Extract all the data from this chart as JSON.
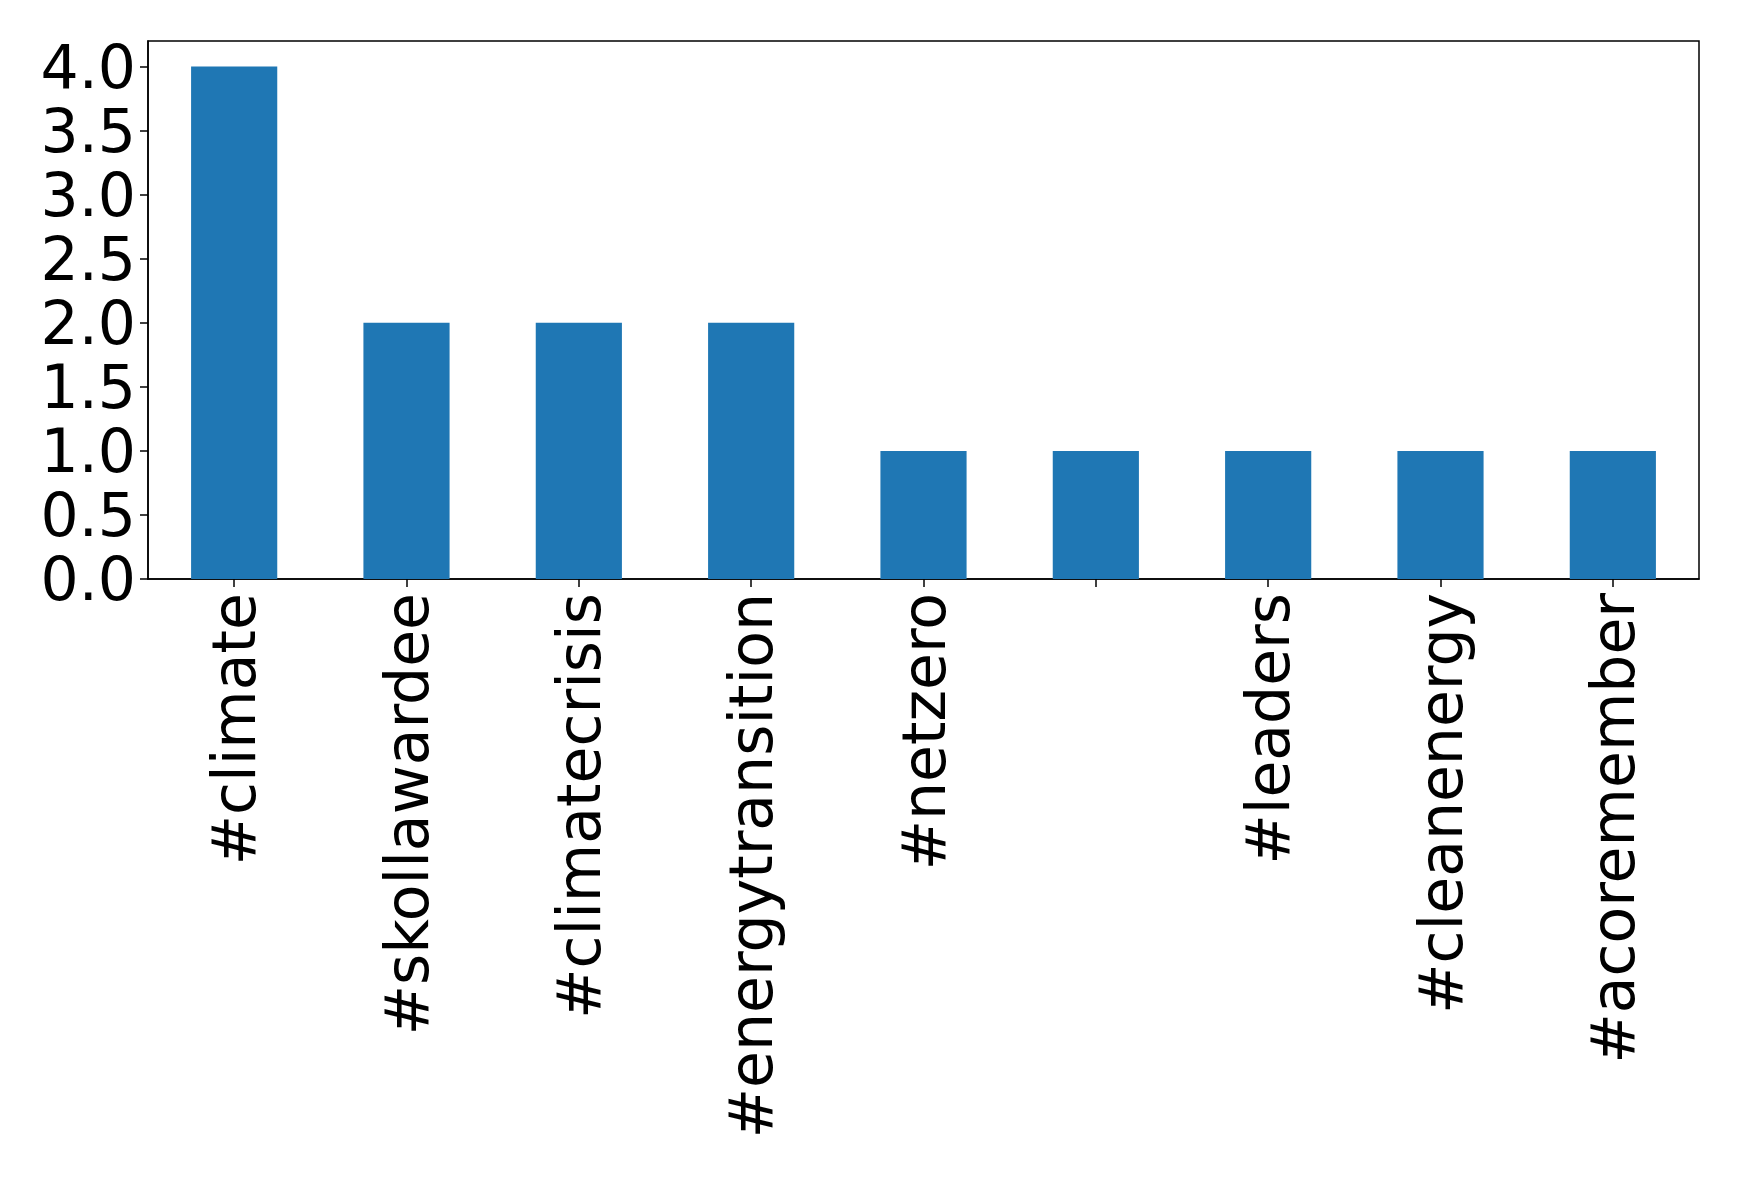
{
  "chart_data": {
    "type": "bar",
    "categories": [
      "#climate",
      "#skollawardee",
      "#climatecrisis",
      "#energytransition",
      "#netzero",
      null,
      "#leaders",
      "#cleanenergy",
      "#acoremember"
    ],
    "values": [
      4,
      2,
      2,
      2,
      1,
      1,
      1,
      1,
      1
    ],
    "color": "#1f77b4",
    "ylim": [
      0,
      4.2
    ],
    "yticks": [
      {
        "value": 0,
        "label": "0.0"
      },
      {
        "value": 0.5,
        "label": "0.5"
      },
      {
        "value": 1,
        "label": "1.0"
      },
      {
        "value": 1.5,
        "label": "1.5"
      },
      {
        "value": 2,
        "label": "2.0"
      },
      {
        "value": 2.5,
        "label": "2.5"
      },
      {
        "value": 3,
        "label": "3.0"
      },
      {
        "value": 3.5,
        "label": "3.5"
      },
      {
        "value": 4,
        "label": "4.0"
      }
    ],
    "grid": false
  }
}
